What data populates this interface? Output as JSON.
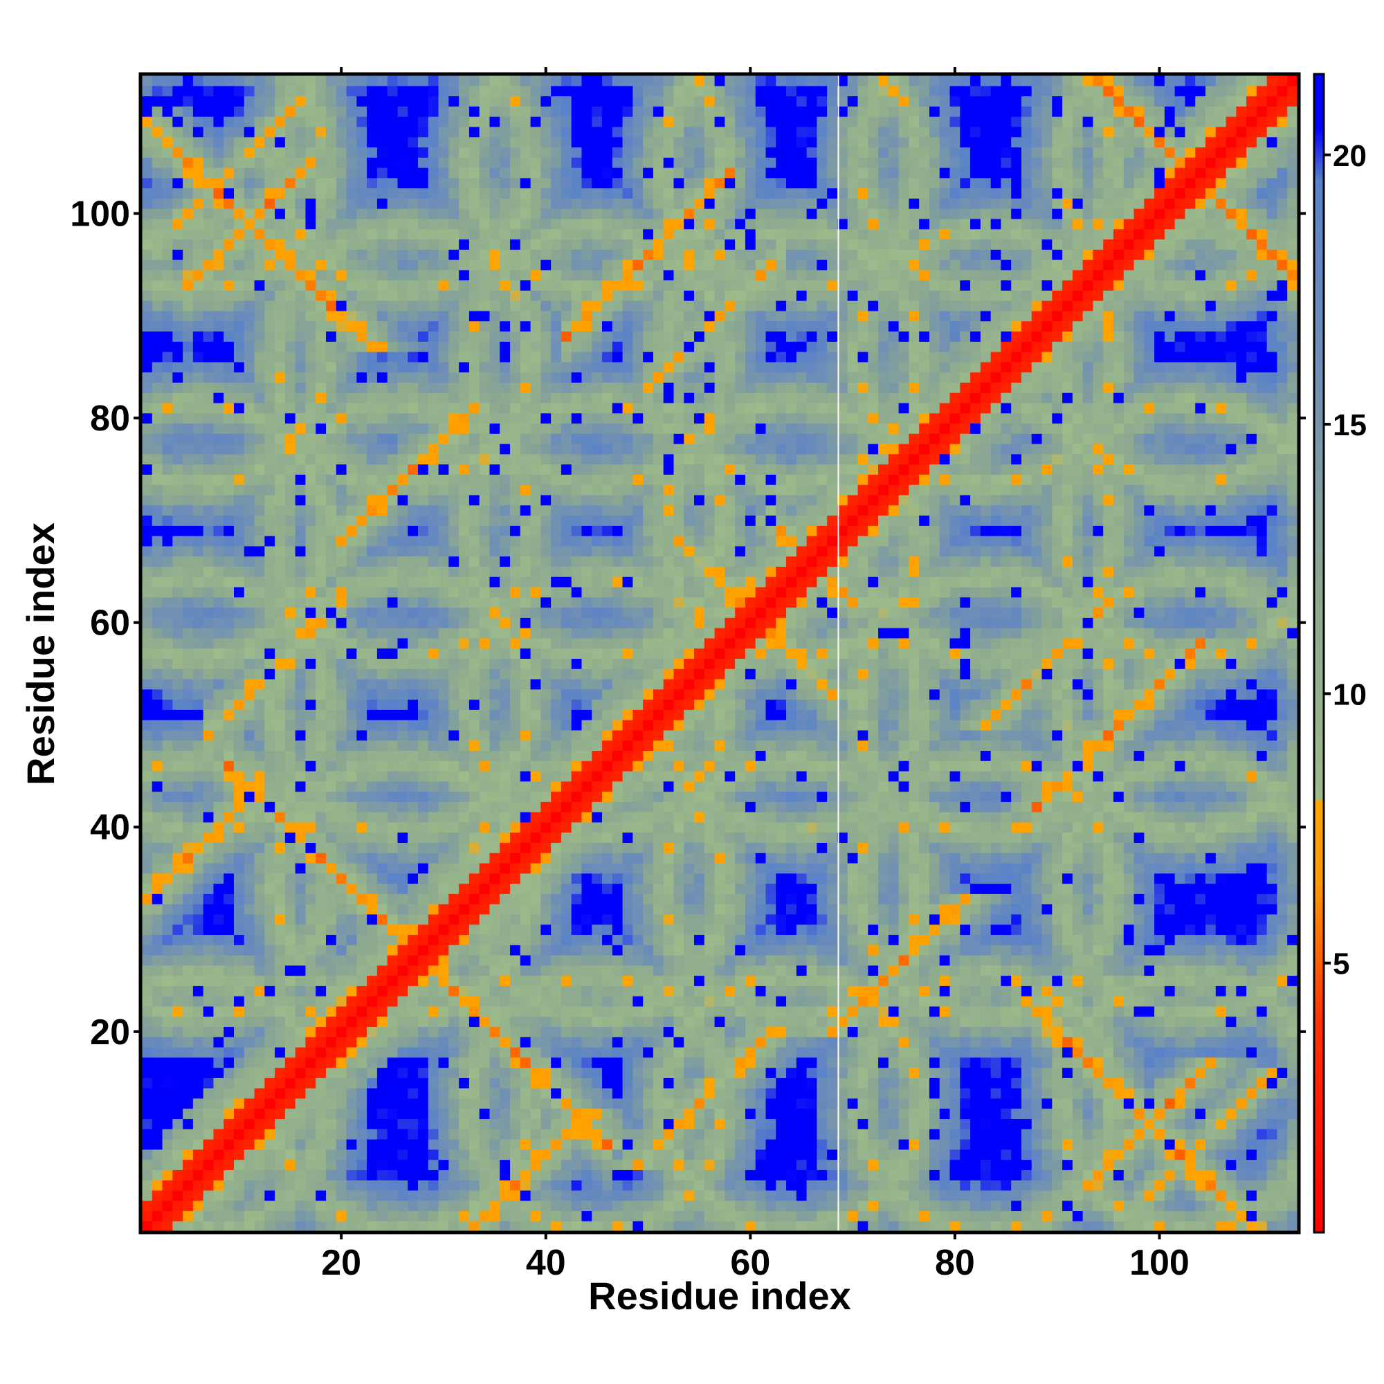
{
  "chart_data": {
    "type": "heatmap",
    "title": "",
    "xlabel": "Residue index",
    "ylabel": "Residue index",
    "n_residues": 113,
    "xlim": [
      0.5,
      113.5
    ],
    "ylim": [
      0.5,
      113.5
    ],
    "x_ticks": [
      20,
      40,
      60,
      80,
      100
    ],
    "y_ticks": [
      20,
      40,
      60,
      80,
      100
    ],
    "colorbar": {
      "range": [
        0,
        21.5
      ],
      "ticks": [
        5,
        10,
        15,
        20
      ],
      "stops": [
        {
          "value": 0,
          "color": "#ff0000"
        },
        {
          "value": 4,
          "color": "#ff3300"
        },
        {
          "value": 6.5,
          "color": "#ff9900"
        },
        {
          "value": 8,
          "color": "#ffa500"
        },
        {
          "value": 8.05,
          "color": "#9cba8a"
        },
        {
          "value": 12,
          "color": "#8ca890"
        },
        {
          "value": 16,
          "color": "#6f8fb6"
        },
        {
          "value": 19.5,
          "color": "#5a82c8"
        },
        {
          "value": 20.5,
          "color": "#0000ff"
        },
        {
          "value": 21.5,
          "color": "#0000ff"
        }
      ]
    },
    "pattern": {
      "description_source": "residue-residue distance map estimated from image",
      "diagonal_value": 0,
      "cutoff": 20.5,
      "background_value": 21.5,
      "secondary_contacts": [
        {
          "kind": "anti",
          "sum": 55,
          "from": 9,
          "to": 46,
          "value": 6.5
        },
        {
          "kind": "anti",
          "sum": 132,
          "from": 62,
          "to": 70,
          "value": 6.5
        },
        {
          "kind": "anti",
          "sum": 110,
          "from": 87,
          "to": 110,
          "value": 6.5
        },
        {
          "kind": "anti",
          "sum": 121,
          "from": 53,
          "to": 68,
          "value": 7
        },
        {
          "kind": "anti",
          "sum": 207,
          "from": 94,
          "to": 113,
          "value": 6.5
        },
        {
          "kind": "par",
          "diff": 32,
          "from": 1,
          "to": 12,
          "value": 6.5
        },
        {
          "kind": "par",
          "diff": 88,
          "from": 5,
          "to": 17,
          "value": 6.5
        },
        {
          "kind": "par",
          "diff": 48,
          "from": 20,
          "to": 33,
          "value": 6.5
        },
        {
          "kind": "par",
          "diff": 46,
          "from": 42,
          "to": 58,
          "value": 6.5
        },
        {
          "kind": "par",
          "diff": 33,
          "from": 50,
          "to": 63,
          "value": 7
        },
        {
          "kind": "par",
          "diff": 42,
          "from": 7,
          "to": 20,
          "value": 7
        },
        {
          "kind": "par",
          "diff": 95,
          "from": 2,
          "to": 16,
          "value": 8
        }
      ]
    }
  }
}
